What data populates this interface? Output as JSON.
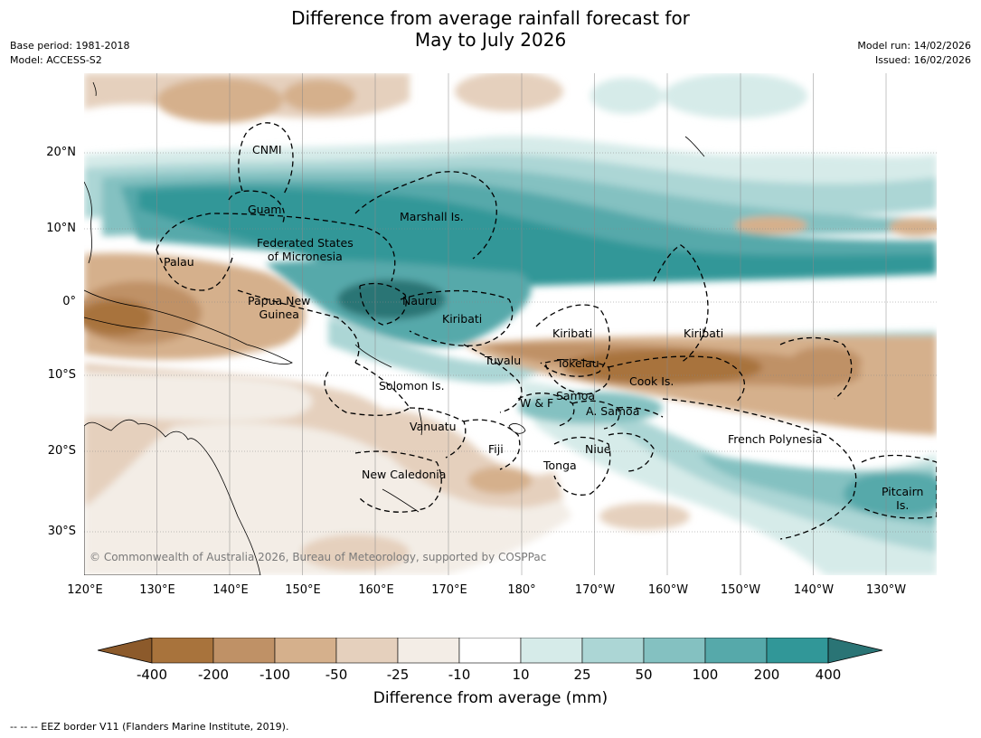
{
  "title": {
    "line1": "Difference from average rainfall forecast for",
    "line2": "May to July 2026"
  },
  "meta": {
    "base_period": "Base period: 1981-2018",
    "model": "Model: ACCESS-S2",
    "model_run": "Model run: 14/02/2026",
    "issued": "Issued: 16/02/2026"
  },
  "map": {
    "lat_labels": [
      "20°N",
      "10°N",
      "0°",
      "10°S",
      "20°S",
      "30°S"
    ],
    "lon_labels": [
      "120°E",
      "130°E",
      "140°E",
      "150°E",
      "160°E",
      "170°E",
      "180°",
      "170°W",
      "160°W",
      "150°W",
      "140°W",
      "130°W"
    ],
    "regions": {
      "cnmi": "CNMI",
      "guam": "Guam",
      "marshall": "Marshall Is.",
      "fsm_1": "Federated States",
      "fsm_2": "of Micronesia",
      "palau": "Palau",
      "png_1": "Papua New",
      "png_2": "Guinea",
      "nauru": "Nauru",
      "kiribati_w": "Kiribati",
      "kiribati_c": "Kiribati",
      "kiribati_e": "Kiribati",
      "tuvalu": "Tuvalu",
      "tokelau": "Tokelau",
      "cook": "Cook Is.",
      "solomon": "Solomon Is.",
      "samoa": "Samoa",
      "wf": "W & F",
      "asamoa": "A. Samoa",
      "vanuatu": "Vanuatu",
      "fiji": "Fiji",
      "niue": "Niue",
      "french_polynesia": "French Polynesia",
      "tonga": "Tonga",
      "new_caledonia": "New Caledonia",
      "pitcairn_1": "Pitcairn",
      "pitcairn_2": "Is."
    },
    "copyright": "© Commonwealth of Australia 2026, Bureau of Meteorology, supported by COSPPac"
  },
  "colorbar": {
    "ticks": [
      "-400",
      "-200",
      "-100",
      "-50",
      "-25",
      "-10",
      "10",
      "25",
      "50",
      "100",
      "200",
      "400"
    ],
    "colors": [
      "#8c5a2b",
      "#a8733c",
      "#bf9166",
      "#d5b08c",
      "#e5d0bd",
      "#f3ede6",
      "#ffffff",
      "#d6ebe9",
      "#acd6d5",
      "#84c1c1",
      "#56a9aa",
      "#319798",
      "#2a7475"
    ],
    "label": "Difference from average (mm)"
  },
  "footnote": "--  --  -- EEZ border V11 (Flanders Marine Institute, 2019)."
}
